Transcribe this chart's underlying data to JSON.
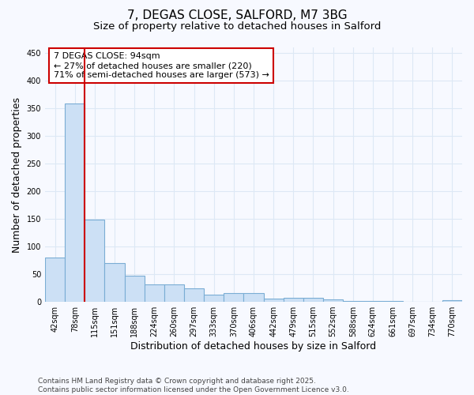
{
  "title_line1": "7, DEGAS CLOSE, SALFORD, M7 3BG",
  "title_line2": "Size of property relative to detached houses in Salford",
  "xlabel": "Distribution of detached houses by size in Salford",
  "ylabel": "Number of detached properties",
  "categories": [
    "42sqm",
    "78sqm",
    "115sqm",
    "151sqm",
    "188sqm",
    "224sqm",
    "260sqm",
    "297sqm",
    "333sqm",
    "370sqm",
    "406sqm",
    "442sqm",
    "479sqm",
    "515sqm",
    "552sqm",
    "588sqm",
    "624sqm",
    "661sqm",
    "697sqm",
    "734sqm",
    "770sqm"
  ],
  "values": [
    80,
    358,
    148,
    70,
    47,
    31,
    31,
    25,
    13,
    16,
    16,
    6,
    7,
    7,
    4,
    1,
    1,
    1,
    0,
    0,
    3
  ],
  "bar_color": "#cce0f5",
  "bar_edge_color": "#7aadd4",
  "property_line_x": 1.5,
  "annotation_text": "7 DEGAS CLOSE: 94sqm\n← 27% of detached houses are smaller (220)\n71% of semi-detached houses are larger (573) →",
  "annotation_box_color": "white",
  "annotation_box_edge_color": "#cc0000",
  "vline_color": "#cc0000",
  "ylim": [
    0,
    460
  ],
  "yticks": [
    0,
    50,
    100,
    150,
    200,
    250,
    300,
    350,
    400,
    450
  ],
  "background_color": "#f7f9ff",
  "grid_color": "#dde8f5",
  "title_fontsize": 11,
  "subtitle_fontsize": 9.5,
  "axis_label_fontsize": 9,
  "tick_fontsize": 7,
  "annotation_fontsize": 8,
  "footnote_fontsize": 6.5,
  "footnote": "Contains HM Land Registry data © Crown copyright and database right 2025.\nContains public sector information licensed under the Open Government Licence v3.0."
}
